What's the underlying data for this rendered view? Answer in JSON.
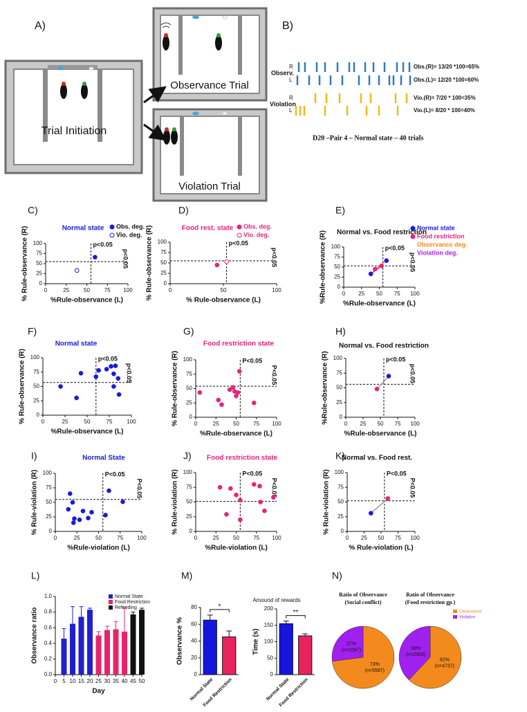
{
  "figure_a": {
    "panel": "A)",
    "boxes": [
      "Trial Initiation",
      "Observance Trial",
      "Violation Trial"
    ]
  },
  "figure_b": {
    "panel": "B)",
    "groups": [
      {
        "label": "Observ.",
        "rows": [
          {
            "side": "R",
            "result": "Obs.(R)= 13/20 *100=65%"
          },
          {
            "side": "L",
            "result": "Obs.(L)= 12/20 *100=60%"
          }
        ]
      },
      {
        "label": "Violation",
        "rows": [
          {
            "side": "R",
            "result": "Vio.(R)= 7/20 * 100=35%"
          },
          {
            "side": "L",
            "result": "Vio.(L)= 8/20 * 100=40%"
          }
        ]
      }
    ],
    "caption": "D20 –Pair 4 – Normal state – 40 trials"
  },
  "chart_data": [
    {
      "type": "scatter",
      "panel": "C)",
      "title": "Normal state",
      "title_color": "#1a1ae0",
      "xlabel": "%Rule-observance (L)",
      "ylabel": "% Rule-observance (R)",
      "xlim": [
        0,
        100
      ],
      "ylim": [
        0,
        100
      ],
      "xticks": [
        0,
        25,
        50,
        75,
        100
      ],
      "yticks": [
        0,
        25,
        50,
        75,
        100
      ],
      "ref_x": 55,
      "ref_y": 55,
      "annotations": [
        "p<0.05",
        "p<0.05"
      ],
      "legend_text_colored": false,
      "series": [
        {
          "name": "Obs. deg.",
          "color": "#1a1ae0",
          "hollow": false,
          "x": [
            60
          ],
          "y": [
            66
          ]
        },
        {
          "name": "Vio. deg.",
          "color": "#1a1ae0",
          "hollow": true,
          "x": [
            38
          ],
          "y": [
            33
          ]
        }
      ]
    },
    {
      "type": "scatter",
      "panel": "D)",
      "title": "Food rest. state",
      "title_color": "#e8237d",
      "xlabel": "% Rule-observance (L)",
      "ylabel": "% Rule-observance (R)",
      "xlim": [
        0,
        100
      ],
      "ylim": [
        0,
        100
      ],
      "xticks": [
        0,
        50,
        100
      ],
      "yticks": [
        0,
        25,
        50,
        75,
        100
      ],
      "ref_x": 53,
      "ref_y": 55,
      "annotations": [
        "p<0.05",
        "p<0.05"
      ],
      "legend_text_colored": true,
      "series": [
        {
          "name": "Obs. deg.",
          "color": "#e8237d",
          "hollow": false,
          "x": [
            44
          ],
          "y": [
            45
          ]
        },
        {
          "name": "Vio. deg.",
          "color": "#e8237d",
          "hollow": true,
          "x": [
            53
          ],
          "y": [
            53
          ]
        }
      ]
    },
    {
      "type": "scatter",
      "panel": "E)",
      "title": "Normal vs. Food restriction",
      "title_color": "#111111",
      "xlabel": "%Rule-observance (L)",
      "ylabel": "%Rule-observance (R)",
      "xlim": [
        0,
        100
      ],
      "ylim": [
        0,
        100
      ],
      "xticks": [
        0,
        25,
        50,
        75,
        100
      ],
      "yticks": [
        0,
        25,
        50,
        75,
        100
      ],
      "ref_x": 55,
      "ref_y": 53,
      "annotations": [
        "p<0.05",
        "p<0.05"
      ],
      "legend_text_colored": true,
      "series": [
        {
          "name": "Normal state",
          "color": "#1a1ae0",
          "hollow": false,
          "x": [
            60,
            38
          ],
          "y": [
            66,
            33
          ]
        },
        {
          "name": "Food restriction",
          "color": "#e8237d",
          "hollow": false,
          "x": [
            44,
            53
          ],
          "y": [
            45,
            53
          ]
        }
      ],
      "connectors": [
        {
          "name": "Observance deg.",
          "color": "#f28a1e"
        },
        {
          "name": "Violation deg.",
          "color": "#b020e8"
        }
      ]
    },
    {
      "type": "scatter",
      "panel": "F)",
      "title": "Normal state",
      "title_color": "#1a1ae0",
      "xlabel": "%Rule-observance (L)",
      "ylabel": "% Rule-observance (R)",
      "xlim": [
        0,
        100
      ],
      "ylim": [
        0,
        100
      ],
      "xticks": [
        0,
        25,
        50,
        75,
        100
      ],
      "yticks": [
        0,
        25,
        50,
        75,
        100
      ],
      "ref_x": 60,
      "ref_y": 57,
      "annotations": [
        "p<0.05",
        "p<0.05"
      ],
      "legend_text_colored": false,
      "series": [
        {
          "color": "#1a1ae0",
          "hollow": false,
          "x": [
            20,
            38,
            43,
            60,
            63,
            72,
            77,
            80,
            82,
            80,
            85,
            86
          ],
          "y": [
            50,
            30,
            73,
            67,
            78,
            80,
            85,
            72,
            86,
            50,
            64,
            36
          ]
        }
      ]
    },
    {
      "type": "scatter",
      "panel": "G)",
      "title": "Food restriction state",
      "title_color": "#e8237d",
      "xlabel": "%Rule-observance (L)",
      "ylabel": "% Rule-observance (R)",
      "xlim": [
        0,
        100
      ],
      "ylim": [
        0,
        100
      ],
      "xticks": [
        0,
        25,
        50,
        75,
        100
      ],
      "yticks": [
        0,
        25,
        50,
        75,
        100
      ],
      "ref_x": 55,
      "ref_y": 54,
      "annotations": [
        "P<0.05",
        "P<0.05"
      ],
      "legend_text_colored": false,
      "series": [
        {
          "color": "#e8237d",
          "hollow": false,
          "x": [
            5,
            28,
            32,
            42,
            46,
            48,
            50,
            52,
            54,
            72
          ],
          "y": [
            43,
            30,
            22,
            48,
            52,
            45,
            37,
            43,
            80,
            25
          ]
        }
      ]
    },
    {
      "type": "scatter",
      "panel": "H)",
      "title": "Normal vs. Food restriction",
      "title_color": "#111111",
      "xlabel": "%Rule-observance (L)",
      "ylabel": "%Rule-observance (R)",
      "xlim": [
        0,
        100
      ],
      "ylim": [
        0,
        100
      ],
      "xticks": [
        0,
        25,
        50,
        75,
        100
      ],
      "yticks": [
        0,
        25,
        50,
        75,
        100
      ],
      "ref_x": 55,
      "ref_y": 56,
      "annotations": [
        "p<0.05",
        "p<0.05"
      ],
      "legend_text_colored": false,
      "series": [
        {
          "color": "#1a1ae0",
          "hollow": false,
          "x": [
            62
          ],
          "y": [
            70
          ]
        },
        {
          "color": "#e8237d",
          "hollow": false,
          "x": [
            45
          ],
          "y": [
            48
          ]
        }
      ],
      "connectors": [
        {
          "color": "#999999"
        }
      ]
    },
    {
      "type": "scatter",
      "panel": "I)",
      "title": "Normal State",
      "title_color": "#1a1ae0",
      "xlabel": "%Rule-violation (L)",
      "ylabel": "% Rule-violation (R)",
      "xlim": [
        0,
        100
      ],
      "ylim": [
        0,
        100
      ],
      "xticks": [
        0,
        25,
        50,
        75,
        100
      ],
      "yticks": [
        0,
        25,
        50,
        75,
        100
      ],
      "ref_x": 55,
      "ref_y": 55,
      "annotations": [
        "P<0.05",
        "P<0.05"
      ],
      "legend_text_colored": false,
      "series": [
        {
          "color": "#1a1ae0",
          "hollow": false,
          "x": [
            15,
            17,
            20,
            22,
            21,
            28,
            32,
            38,
            42,
            58,
            62,
            78
          ],
          "y": [
            38,
            65,
            50,
            22,
            15,
            20,
            35,
            23,
            33,
            28,
            70,
            51
          ]
        }
      ]
    },
    {
      "type": "scatter",
      "panel": "J)",
      "title": "Food restriction state",
      "title_color": "#e8237d",
      "xlabel": "%Rule-violation (L)",
      "ylabel": "% Rule-violation (R)",
      "xlim": [
        0,
        100
      ],
      "ylim": [
        0,
        100
      ],
      "xticks": [
        0,
        25,
        50,
        75,
        100
      ],
      "yticks": [
        0,
        25,
        50,
        75,
        100
      ],
      "ref_x": 55,
      "ref_y": 51,
      "annotations": [
        "P<0.05",
        "P<0.05"
      ],
      "legend_text_colored": false,
      "series": [
        {
          "color": "#e8237d",
          "hollow": false,
          "x": [
            30,
            38,
            43,
            50,
            55,
            55,
            72,
            79,
            80,
            85,
            96
          ],
          "y": [
            75,
            29,
            73,
            62,
            53,
            20,
            80,
            77,
            50,
            35,
            58
          ]
        }
      ]
    },
    {
      "type": "scatter",
      "panel": "K)",
      "title": "Normal vs. Food rest.",
      "title_color": "#111111",
      "xlabel": "% Rule-violation (L)",
      "ylabel": "% Rule-violation (R)",
      "xlim": [
        0,
        100
      ],
      "ylim": [
        0,
        100
      ],
      "xticks": [
        0,
        25,
        50,
        75,
        100
      ],
      "yticks": [
        0,
        25,
        50,
        75,
        100
      ],
      "ref_x": 55,
      "ref_y": 52,
      "annotations": [
        "P<0.05",
        "P<0.05"
      ],
      "legend_text_colored": false,
      "series": [
        {
          "color": "#1a1ae0",
          "hollow": false,
          "x": [
            35
          ],
          "y": [
            31
          ]
        },
        {
          "color": "#e8237d",
          "hollow": false,
          "x": [
            60
          ],
          "y": [
            56
          ]
        }
      ],
      "connectors": [
        {
          "color": "#999999"
        }
      ]
    },
    {
      "type": "bar",
      "panel": "L)",
      "xlabel": "Day",
      "ylabel": "Observance ratio",
      "xlim": [
        0,
        50
      ],
      "ylim": [
        0,
        1.0
      ],
      "xticks": [
        0,
        5,
        10,
        15,
        20,
        25,
        30,
        35,
        40,
        45,
        50
      ],
      "yticks": [
        {
          "value": 0,
          "label": "0.0"
        },
        0.2,
        0.4,
        0.6,
        0.8,
        {
          "value": 1,
          "label": "1.0"
        }
      ],
      "series": [
        {
          "name": "Normal State",
          "color": "#2020d0",
          "x": [
            5,
            10,
            15,
            20
          ],
          "values": [
            0.46,
            0.65,
            0.74,
            0.83
          ],
          "errors": [
            0.13,
            0.22,
            0.13,
            0.02
          ]
        },
        {
          "name": "Food Restriction",
          "color": "#e8236a",
          "x": [
            25,
            30,
            35,
            40
          ],
          "values": [
            0.5,
            0.57,
            0.58,
            0.55
          ],
          "errors": [
            0.05,
            0.05,
            0.1,
            0.3
          ]
        },
        {
          "name": "Refeeding",
          "color": "#111111",
          "x": [
            45,
            50
          ],
          "values": [
            0.77,
            0.83
          ],
          "errors": [
            0.03,
            0.02
          ]
        }
      ]
    },
    {
      "type": "bar",
      "panel": "M)",
      "ylabel": "Observance %",
      "categories": [
        "Normal State",
        "Food Restriction"
      ],
      "values": [
        65,
        45
      ],
      "errors": [
        6,
        7
      ],
      "colors": [
        "#1515e0",
        "#e8235f"
      ],
      "ylim": [
        0,
        80
      ],
      "yticks": [
        0,
        20,
        40,
        60,
        80
      ],
      "significance": "*"
    },
    {
      "type": "bar",
      "title": "Amound of rewards",
      "ylabel": "Time (s)",
      "categories": [
        "Normal State",
        "Food Restriction"
      ],
      "values": [
        155,
        118
      ],
      "errors": [
        8,
        6
      ],
      "colors": [
        "#1515e0",
        "#e8235f"
      ],
      "ylim": [
        0,
        200
      ],
      "yticks": [
        0,
        50,
        100,
        150,
        200
      ],
      "significance": "**"
    },
    {
      "type": "pie",
      "panel": "N)",
      "title": [
        "Ratio of Observance",
        "(Social conflict)"
      ],
      "values": [
        73,
        27
      ],
      "value_labels": [
        [
          "73%",
          "(n=5587)"
        ],
        [
          "27%",
          "(n=2067)"
        ]
      ],
      "colors": [
        "#f28a1e",
        "#a020f0"
      ]
    },
    {
      "type": "pie",
      "title": [
        "Ratio of Observance",
        "(Food restriction gp.)"
      ],
      "values": [
        62,
        38
      ],
      "value_labels": [
        [
          "62%",
          "(n=4737)"
        ],
        [
          "38%",
          "(n=2903)"
        ]
      ],
      "colors": [
        "#f28a1e",
        "#a020f0"
      ],
      "labels": [
        "Observance",
        "Violation"
      ]
    }
  ]
}
